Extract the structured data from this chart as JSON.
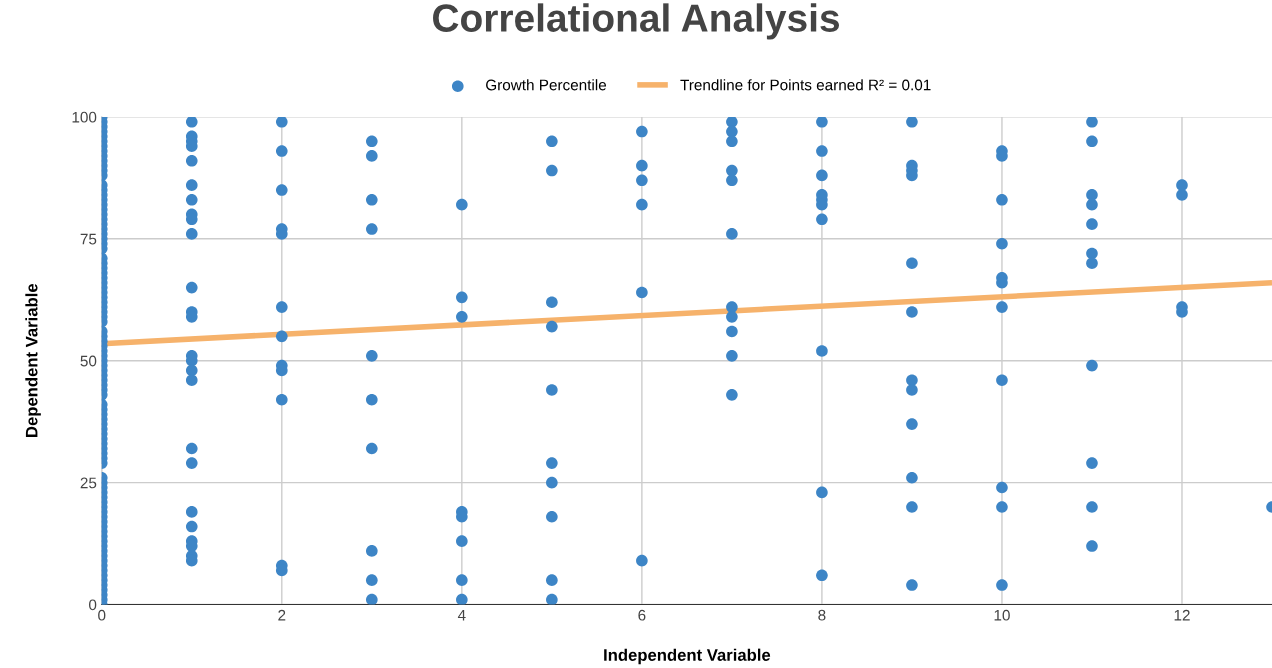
{
  "chart_data": {
    "type": "scatter",
    "title": "Correlational Analysis",
    "xlabel": "Independent Variable",
    "ylabel": "Dependent Variable",
    "xlim": [
      0,
      13
    ],
    "xticks": [
      0,
      2,
      4,
      6,
      8,
      10,
      12
    ],
    "ylim": [
      0,
      100
    ],
    "yticks": [
      0,
      25,
      50,
      75,
      100
    ],
    "grid": true,
    "legend": "top",
    "series": [
      {
        "name": "Growth Percentile",
        "color": "#3d85c6",
        "marker": "circle",
        "x": [
          0,
          0,
          0,
          0,
          0,
          0,
          0,
          0,
          0,
          0,
          0,
          0,
          0,
          0,
          0,
          0,
          0,
          0,
          0,
          0,
          0,
          0,
          0,
          0,
          0,
          0,
          0,
          0,
          0,
          0,
          0,
          0,
          0,
          0,
          0,
          0,
          0,
          0,
          0,
          0,
          0,
          0,
          0,
          0,
          0,
          0,
          0,
          0,
          0,
          0,
          0,
          0,
          0,
          0,
          0,
          0,
          0,
          0,
          0,
          0,
          0,
          0,
          0,
          0,
          0,
          0,
          0,
          0,
          0,
          0,
          0,
          0,
          0,
          0,
          0,
          0,
          0,
          0,
          0,
          0,
          0,
          0,
          0,
          0,
          0,
          0,
          0,
          0,
          0,
          0,
          0,
          0,
          0,
          0,
          0,
          1,
          1,
          1,
          1,
          1,
          1,
          1,
          1,
          1,
          1,
          1,
          1,
          1,
          1,
          1,
          1,
          1,
          1,
          1,
          1,
          1,
          1,
          1,
          1,
          1,
          2,
          2,
          2,
          2,
          2,
          2,
          2,
          2,
          2,
          2,
          2,
          2,
          3,
          3,
          3,
          3,
          3,
          3,
          3,
          3,
          3,
          3,
          4,
          4,
          4,
          4,
          4,
          4,
          4,
          4,
          5,
          5,
          5,
          5,
          5,
          5,
          5,
          5,
          5,
          5,
          6,
          6,
          6,
          6,
          6,
          6,
          7,
          7,
          7,
          7,
          7,
          7,
          7,
          7,
          7,
          7,
          7,
          8,
          8,
          8,
          8,
          8,
          8,
          8,
          8,
          8,
          8,
          9,
          9,
          9,
          9,
          9,
          9,
          9,
          9,
          9,
          9,
          9,
          9,
          10,
          10,
          10,
          10,
          10,
          10,
          10,
          10,
          10,
          10,
          10,
          11,
          11,
          11,
          11,
          11,
          11,
          11,
          11,
          11,
          11,
          11,
          12,
          12,
          12,
          12,
          13
        ],
        "values": [
          0,
          1,
          2,
          3,
          4,
          5,
          6,
          7,
          8,
          9,
          10,
          11,
          12,
          13,
          14,
          15,
          16,
          17,
          18,
          19,
          20,
          21,
          22,
          23,
          24,
          25,
          26,
          29,
          30,
          31,
          32,
          33,
          34,
          35,
          36,
          37,
          38,
          39,
          40,
          41,
          43,
          44,
          45,
          46,
          47,
          48,
          49,
          50,
          51,
          52,
          53,
          54,
          55,
          56,
          58,
          59,
          60,
          61,
          62,
          63,
          64,
          65,
          66,
          67,
          68,
          69,
          70,
          71,
          73,
          74,
          75,
          76,
          77,
          78,
          79,
          80,
          81,
          82,
          83,
          84,
          85,
          86,
          88,
          89,
          90,
          91,
          92,
          93,
          94,
          95,
          96,
          97,
          98,
          99,
          100,
          99,
          96,
          95,
          94,
          91,
          86,
          83,
          80,
          79,
          76,
          65,
          60,
          59,
          51,
          50,
          48,
          46,
          32,
          29,
          19,
          16,
          13,
          12,
          10,
          9,
          99,
          93,
          85,
          77,
          76,
          61,
          55,
          49,
          48,
          42,
          8,
          7,
          95,
          92,
          83,
          77,
          51,
          42,
          32,
          11,
          5,
          1,
          82,
          63,
          59,
          19,
          18,
          13,
          5,
          1,
          95,
          89,
          62,
          57,
          44,
          29,
          25,
          18,
          5,
          1,
          97,
          90,
          87,
          82,
          64,
          9,
          99,
          97,
          95,
          89,
          87,
          76,
          61,
          59,
          56,
          51,
          43,
          99,
          93,
          88,
          84,
          83,
          82,
          79,
          52,
          23,
          6,
          99,
          90,
          89,
          88,
          70,
          60,
          46,
          44,
          37,
          26,
          20,
          4,
          93,
          92,
          83,
          74,
          67,
          66,
          61,
          46,
          24,
          20,
          4,
          99,
          95,
          84,
          82,
          78,
          72,
          70,
          49,
          29,
          20,
          12,
          86,
          84,
          61,
          60,
          20
        ]
      },
      {
        "name": "Trendline for Points earned R² = 0.01",
        "color": "#f6b26b",
        "type": "line",
        "marker": "none",
        "x": [
          0,
          13
        ],
        "values": [
          53.5,
          66
        ]
      }
    ]
  }
}
